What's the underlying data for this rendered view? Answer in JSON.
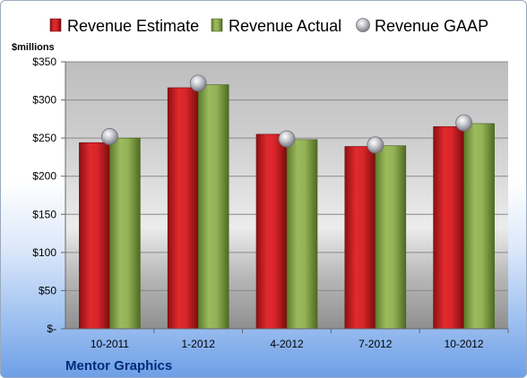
{
  "chart_data": {
    "type": "bar",
    "unit_label": "$millions",
    "categories": [
      "10-2011",
      "1-2012",
      "4-2012",
      "7-2012",
      "10-2012"
    ],
    "series": [
      {
        "name": "Revenue Estimate",
        "kind": "bar",
        "color": "#cc1f24",
        "values": [
          244,
          316,
          255,
          239,
          265
        ]
      },
      {
        "name": "Revenue Actual",
        "kind": "bar",
        "color": "#8dab52",
        "values": [
          250,
          320,
          248,
          240,
          269
        ]
      },
      {
        "name": "Revenue GAAP",
        "kind": "marker",
        "color": "#b8b8c0",
        "values": [
          252,
          322,
          249,
          241,
          270
        ]
      }
    ],
    "y_ticks": [
      {
        "value": 0,
        "label": "$-"
      },
      {
        "value": 50,
        "label": "$50"
      },
      {
        "value": 100,
        "label": "$100"
      },
      {
        "value": 150,
        "label": "$150"
      },
      {
        "value": 200,
        "label": "$200"
      },
      {
        "value": 250,
        "label": "$250"
      },
      {
        "value": 300,
        "label": "$300"
      },
      {
        "value": 350,
        "label": "$350"
      }
    ],
    "ylim": [
      0,
      350
    ],
    "grid": true,
    "legend_position": "top"
  },
  "footer": {
    "company": "Mentor Graphics"
  }
}
